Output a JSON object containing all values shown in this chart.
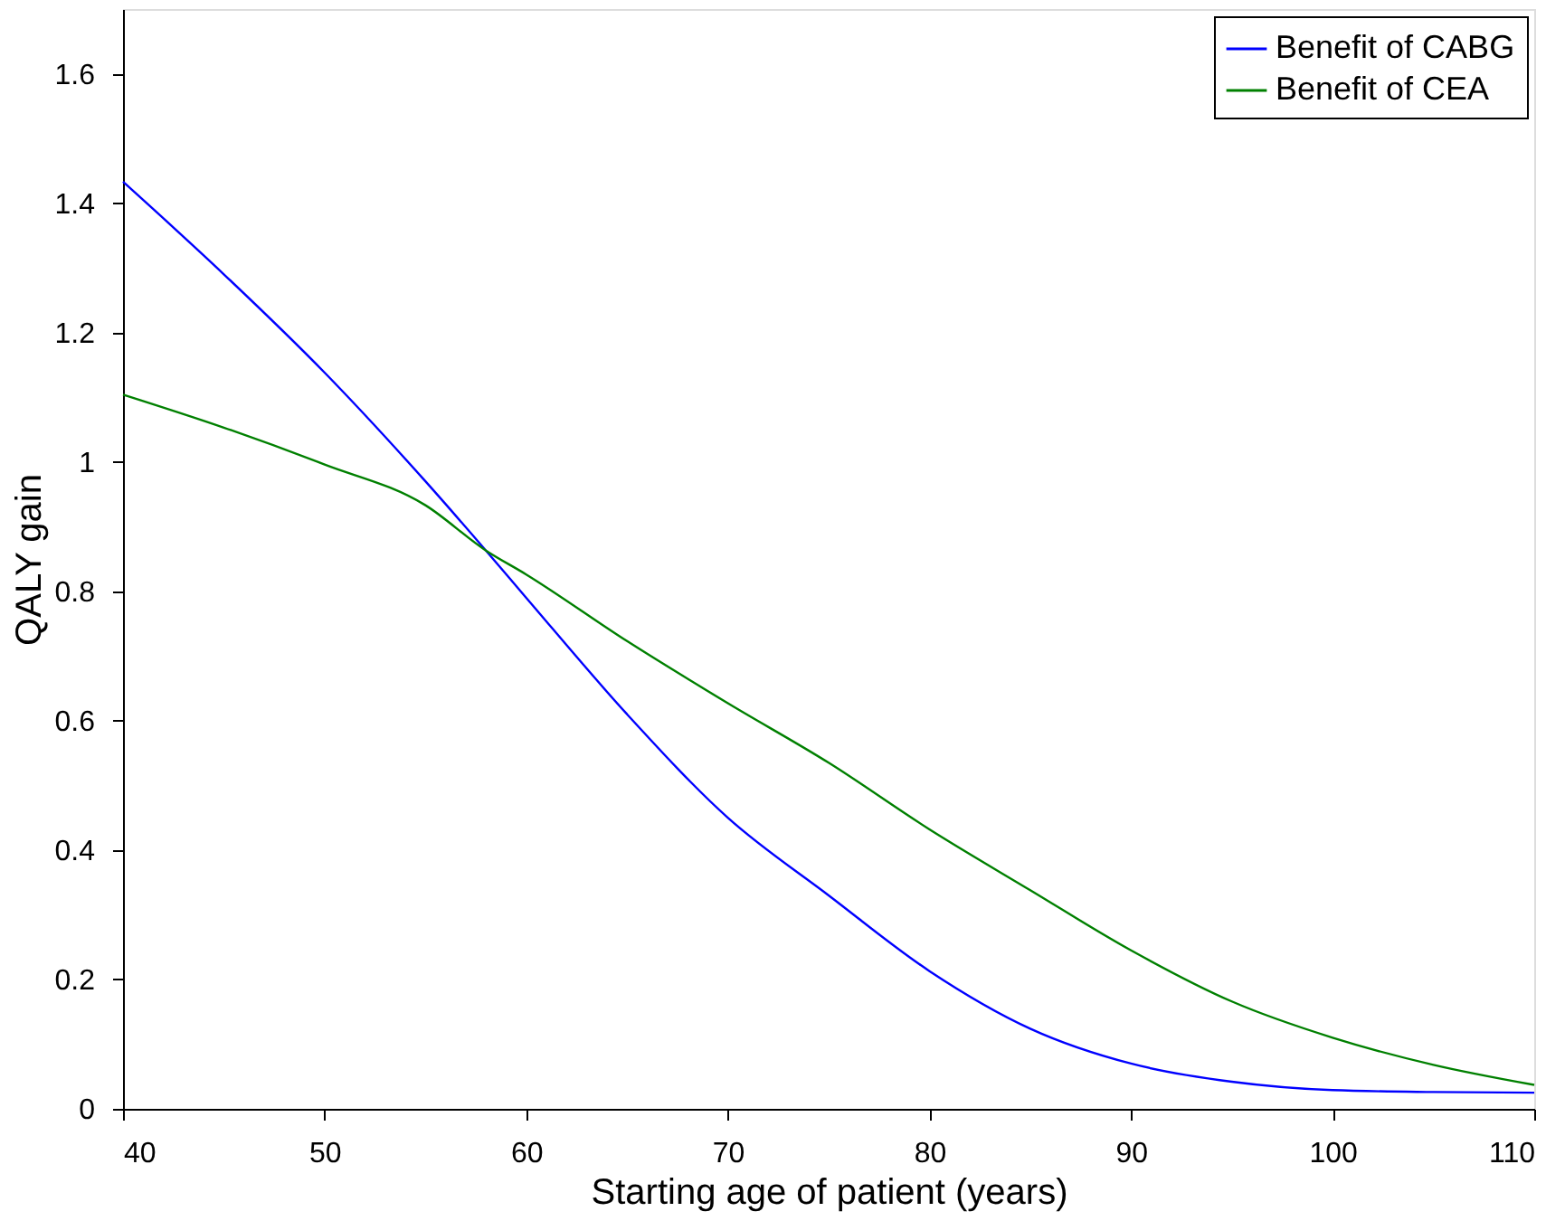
{
  "chart_data": {
    "type": "line",
    "xlabel": "Starting age of patient (years)",
    "ylabel": "QALY gain",
    "xlim": [
      40,
      110
    ],
    "xticks": [
      40,
      50,
      60,
      70,
      80,
      90,
      100,
      110
    ],
    "ylim": [
      0,
      1.7
    ],
    "yticks": [
      0,
      0.2,
      0.4,
      0.6,
      0.8,
      1,
      1.2,
      1.4,
      1.6
    ],
    "grid": false,
    "legend": "top right",
    "marker": "none",
    "line_style": "solid",
    "x": [
      40,
      45,
      50,
      55,
      58,
      60,
      65,
      70,
      75,
      80,
      85,
      90,
      95,
      100,
      105,
      110
    ],
    "series": [
      {
        "name": "Benefit of CABG",
        "color": "#0000ff",
        "values": [
          1.433,
          1.29,
          1.138,
          0.97,
          0.863,
          0.79,
          0.61,
          0.45,
          0.33,
          0.213,
          0.124,
          0.07,
          0.042,
          0.029,
          0.026,
          0.025
        ]
      },
      {
        "name": "Benefit of CEA",
        "color": "#008000",
        "values": [
          1.104,
          1.053,
          0.996,
          0.933,
          0.863,
          0.826,
          0.723,
          0.627,
          0.535,
          0.432,
          0.338,
          0.245,
          0.166,
          0.11,
          0.068,
          0.037
        ]
      }
    ]
  }
}
